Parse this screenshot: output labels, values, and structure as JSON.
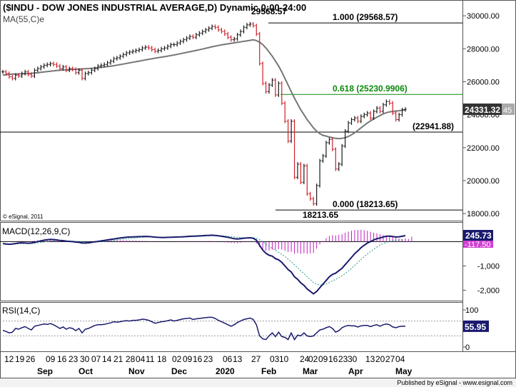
{
  "chart_data": [
    {
      "type": "line",
      "panel": "price",
      "title": "($INDU - DOW JONES INDUSTRIAL AVERAGE,D) Dynamic,0:00-24:00",
      "overlay_label": "MA(55,C)e",
      "copyright": "© eSignal, 2011",
      "y_ticks": [
        "30000.00",
        "28000.00",
        "26000.00",
        "24000.00",
        "22000.00",
        "20000.00",
        "18000.00"
      ],
      "ylim": [
        17700,
        30700
      ],
      "last_price_label": "24331.32",
      "last_price_suffix": "45",
      "peak_label": "29568.57",
      "trough_label": "18213.65",
      "fib_levels": [
        {
          "label": "1.000 (29568.57)",
          "value": 29568.57,
          "color": "#000000"
        },
        {
          "label": "0.618 (25230.9906)",
          "value": 25230.99,
          "color": "#0a8a0a"
        },
        {
          "label": "(22941.88)",
          "value": 22941.88,
          "color": "#000000"
        },
        {
          "label": "0.000 (18213.65)",
          "value": 18213.65,
          "color": "#000000"
        }
      ],
      "series": [
        {
          "name": "$INDU",
          "color": "#1a1a1a",
          "values": [
            26600,
            26500,
            26300,
            26200,
            26400,
            26350,
            26500,
            26600,
            26450,
            26350,
            26700,
            26800,
            26900,
            27000,
            27050,
            27100,
            27050,
            26950,
            26800,
            26900,
            26700,
            26800,
            26750,
            26550,
            26700,
            26200,
            26500,
            26550,
            26700,
            26800,
            26950,
            27000,
            27050,
            27150,
            27250,
            27400,
            27450,
            27550,
            27650,
            27750,
            27800,
            27850,
            27900,
            27950,
            28050,
            28100,
            28050,
            27950,
            27850,
            27900,
            28000,
            28050,
            28150,
            28250,
            28250,
            28350,
            28450,
            28550,
            28650,
            28750,
            28700,
            28850,
            28950,
            29050,
            29150,
            29250,
            29350,
            29300,
            29150,
            29050,
            28900,
            28700,
            28550,
            28600,
            28850,
            29050,
            29300,
            29450,
            29500,
            29400,
            28900,
            27100,
            25900,
            25400,
            25800,
            26100,
            25200,
            25900,
            24700,
            23600,
            22400,
            23600,
            20200,
            21000,
            19900,
            20900,
            19200,
            18900,
            18600,
            19700,
            21200,
            21500,
            22300,
            22500,
            21900,
            20700,
            21000,
            22100,
            23000,
            23500,
            23700,
            23800,
            23600,
            23900,
            24000,
            24100,
            23800,
            24200,
            24400,
            24200,
            24600,
            24800,
            24700,
            24100,
            23700,
            24000,
            24300,
            24331.32
          ]
        },
        {
          "name": "MA(55,C)e",
          "color": "#777777",
          "values": [
            26400,
            26420,
            26440,
            26460,
            26470,
            26475,
            26480,
            26490,
            26500,
            26510,
            26525,
            26545,
            26570,
            26590,
            26615,
            26640,
            26660,
            26680,
            26695,
            26710,
            26725,
            26735,
            26745,
            26755,
            26765,
            26780,
            26790,
            26800,
            26815,
            26830,
            26850,
            26870,
            26890,
            26915,
            26945,
            26975,
            27005,
            27040,
            27075,
            27110,
            27145,
            27180,
            27215,
            27250,
            27290,
            27325,
            27360,
            27395,
            27430,
            27460,
            27490,
            27520,
            27555,
            27590,
            27625,
            27660,
            27700,
            27740,
            27780,
            27820,
            27860,
            27900,
            27940,
            27985,
            28030,
            28075,
            28120,
            28160,
            28200,
            28235,
            28270,
            28300,
            28330,
            28360,
            28390,
            28420,
            28450,
            28480,
            28510,
            28540,
            28500,
            28400,
            28250,
            28050,
            27800,
            27550,
            27250,
            26950,
            26600,
            26200,
            25800,
            25400,
            25000,
            24650,
            24300,
            24000,
            23700,
            23450,
            23200,
            23000,
            22850,
            22750,
            22700,
            22650,
            22600,
            22560,
            22550,
            22560,
            22600,
            22680,
            22780,
            22900,
            23050,
            23200,
            23350,
            23500,
            23620,
            23740,
            23850,
            23950,
            24050,
            24120,
            24170,
            24200,
            24220,
            24240,
            24270,
            24300
          ]
        }
      ]
    },
    {
      "type": "line",
      "panel": "macd",
      "label": "MACD(12,26,9,C)",
      "y_ticks": [
        "0",
        "-1,000",
        "-2,000"
      ],
      "ylim": [
        -2400,
        600
      ],
      "value_label": "245.73",
      "signal_label": "-117.50",
      "series": [
        {
          "name": "MACD",
          "color": "#1a1a6e",
          "values": [
            -80,
            -100,
            -110,
            -100,
            -80,
            -60,
            -50,
            -60,
            -70,
            -60,
            -30,
            0,
            30,
            60,
            80,
            90,
            85,
            70,
            50,
            40,
            20,
            10,
            0,
            -20,
            -30,
            -60,
            -60,
            -50,
            -30,
            -10,
            10,
            30,
            50,
            70,
            90,
            110,
            130,
            150,
            165,
            180,
            190,
            195,
            200,
            205,
            210,
            215,
            210,
            200,
            185,
            175,
            170,
            170,
            175,
            180,
            185,
            190,
            195,
            200,
            210,
            220,
            225,
            230,
            235,
            245,
            255,
            260,
            265,
            255,
            240,
            220,
            200,
            180,
            150,
            120,
            110,
            120,
            140,
            150,
            160,
            140,
            60,
            -150,
            -350,
            -480,
            -560,
            -600,
            -700,
            -750,
            -850,
            -1000,
            -1150,
            -1250,
            -1450,
            -1550,
            -1700,
            -1800,
            -1950,
            -2050,
            -2150,
            -2050,
            -1900,
            -1750,
            -1600,
            -1450,
            -1350,
            -1300,
            -1200,
            -1100,
            -950,
            -800,
            -650,
            -500,
            -380,
            -250,
            -150,
            -60,
            0,
            70,
            120,
            150,
            190,
            220,
            230,
            210,
            190,
            200,
            220,
            245.73
          ]
        },
        {
          "name": "Signal",
          "color": "#2a9d8f",
          "values": [
            -90,
            -92,
            -95,
            -96,
            -93,
            -87,
            -80,
            -76,
            -75,
            -72,
            -64,
            -52,
            -35,
            -15,
            5,
            20,
            30,
            36,
            38,
            38,
            35,
            30,
            24,
            15,
            6,
            -6,
            -17,
            -23,
            -24,
            -22,
            -15,
            -5,
            8,
            22,
            37,
            53,
            70,
            88,
            105,
            120,
            134,
            146,
            157,
            168,
            177,
            185,
            190,
            192,
            191,
            188,
            185,
            182,
            180,
            180,
            181,
            183,
            186,
            189,
            193,
            198,
            204,
            210,
            216,
            222,
            229,
            236,
            242,
            245,
            245,
            240,
            232,
            222,
            208,
            190,
            175,
            164,
            159,
            157,
            157,
            154,
            135,
            78,
            -8,
            -102,
            -194,
            -275,
            -360,
            -438,
            -520,
            -616,
            -723,
            -828,
            -952,
            -1072,
            -1198,
            -1318,
            -1444,
            -1565,
            -1682,
            -1755,
            -1785,
            -1778,
            -1742,
            -1684,
            -1617,
            -1554,
            -1483,
            -1406,
            -1315,
            -1212,
            -1100,
            -980,
            -860,
            -738,
            -620,
            -508,
            -406,
            -311,
            -225,
            -150,
            -84,
            -28,
            12,
            40,
            58,
            68,
            76,
            110,
            -117.5
          ]
        }
      ],
      "histogram": [
        10,
        8,
        15,
        4,
        13,
        27,
        30,
        16,
        5,
        12,
        34,
        52,
        65,
        75,
        75,
        70,
        55,
        34,
        12,
        2,
        -15,
        -20,
        -24,
        -35,
        -36,
        -54,
        -43,
        -27,
        -6,
        12,
        25,
        35,
        42,
        48,
        53,
        57,
        60,
        62,
        60,
        60,
        56,
        49,
        43,
        37,
        33,
        30,
        20,
        8,
        -6,
        -13,
        -15,
        -12,
        -5,
        0,
        4,
        7,
        9,
        11,
        17,
        22,
        21,
        20,
        19,
        23,
        26,
        24,
        23,
        10,
        -5,
        -20,
        -32,
        -42,
        -58,
        -70,
        -65,
        -44,
        -19,
        -7,
        3,
        -14,
        -75,
        -228,
        -342,
        -378,
        -366,
        -325,
        -340,
        -312,
        -330,
        -384,
        -427,
        -422,
        -498,
        -478,
        -502,
        -482,
        -506,
        -485,
        -468,
        -295,
        -115,
        28,
        142,
        234,
        267,
        254,
        283,
        306,
        365,
        412,
        450,
        480,
        480,
        488,
        470,
        446,
        406,
        371,
        345,
        309,
        270,
        248,
        218,
        198,
        172,
        130,
        106,
        133,
        110,
        200
      ]
    },
    {
      "type": "line",
      "panel": "rsi",
      "label": "RSI(14,C)",
      "y_ticks": [
        "100",
        "50",
        "0"
      ],
      "ylim": [
        0,
        100
      ],
      "value_label": "55.95",
      "series": [
        {
          "name": "RSI",
          "color": "#1a1a6e",
          "values": [
            45,
            42,
            38,
            40,
            50,
            48,
            52,
            55,
            50,
            46,
            56,
            58,
            60,
            62,
            61,
            63,
            60,
            55,
            50,
            54,
            48,
            52,
            50,
            44,
            50,
            38,
            48,
            50,
            54,
            58,
            60,
            60,
            61,
            63,
            65,
            68,
            67,
            68,
            70,
            71,
            70,
            72,
            72,
            73,
            75,
            74,
            72,
            68,
            64,
            66,
            68,
            69,
            71,
            73,
            70,
            72,
            74,
            76,
            77,
            78,
            74,
            76,
            77,
            78,
            79,
            80,
            80,
            77,
            72,
            68,
            64,
            60,
            56,
            60,
            66,
            70,
            74,
            76,
            78,
            74,
            60,
            30,
            22,
            20,
            30,
            38,
            28,
            40,
            28,
            26,
            20,
            38,
            20,
            32,
            30,
            38,
            30,
            28,
            30,
            38,
            46,
            48,
            52,
            55,
            50,
            40,
            44,
            52,
            56,
            58,
            57,
            57,
            54,
            57,
            58,
            58,
            55,
            58,
            60,
            56,
            60,
            62,
            60,
            54,
            52,
            55,
            56,
            55.95
          ]
        }
      ]
    }
  ],
  "x_labels": {
    "days": [
      "12",
      "19",
      "26",
      "09",
      "16",
      "23",
      "30",
      "07",
      "14",
      "21",
      "28",
      "04",
      "11",
      "18",
      "02",
      "09",
      "16",
      "23",
      "06",
      "13",
      "27",
      "03",
      "10",
      "24",
      "02",
      "09",
      "16",
      "23",
      "30",
      "13",
      "20",
      "27",
      "04"
    ],
    "months": [
      "Sep",
      "Oct",
      "Nov",
      "Dec",
      "2020",
      "Feb",
      "Mar",
      "Apr",
      "May"
    ]
  },
  "footer": "Published by eSignal - www.esignal.com"
}
